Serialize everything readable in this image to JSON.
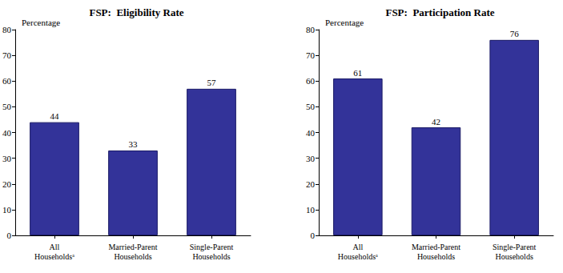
{
  "chart_data": [
    {
      "type": "bar",
      "title": "FSP:  Eligibility Rate",
      "y_label": "Percentage",
      "categories": [
        "All Householdsᵃ",
        "Married-Parent Households",
        "Single-Parent Households"
      ],
      "values": [
        44,
        33,
        57
      ],
      "color": "#333399",
      "ylim": [
        0,
        80
      ],
      "yticks": [
        0,
        10,
        20,
        30,
        40,
        50,
        60,
        70,
        80
      ],
      "grid": false,
      "data_labels": true
    },
    {
      "type": "bar",
      "title": "FSP:  Participation Rate",
      "y_label": "Percentage",
      "categories": [
        "All Householdsᵃ",
        "Married-Parent Households",
        "Single-Parent Households"
      ],
      "values": [
        61,
        42,
        76
      ],
      "color": "#333399",
      "ylim": [
        0,
        80
      ],
      "yticks": [
        0,
        10,
        20,
        30,
        40,
        50,
        60,
        70,
        80
      ],
      "grid": false,
      "data_labels": true
    }
  ]
}
